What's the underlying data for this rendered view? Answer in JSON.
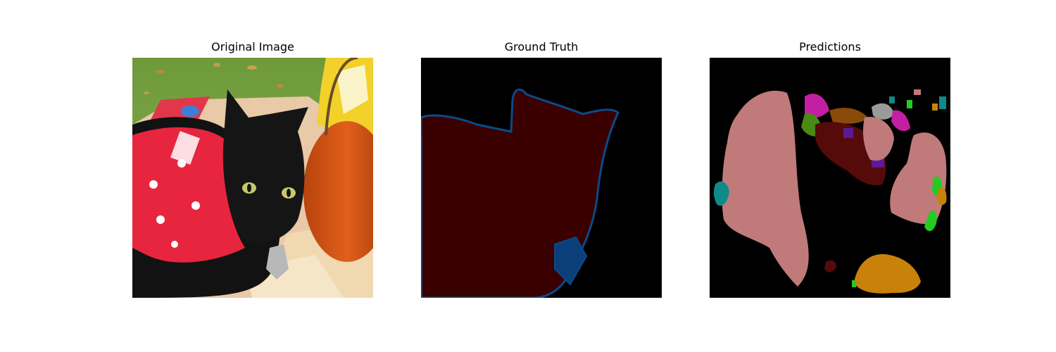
{
  "figure": {
    "panels": [
      {
        "title": "Original Image"
      },
      {
        "title": "Ground Truth"
      },
      {
        "title": "Predictions"
      }
    ]
  }
}
